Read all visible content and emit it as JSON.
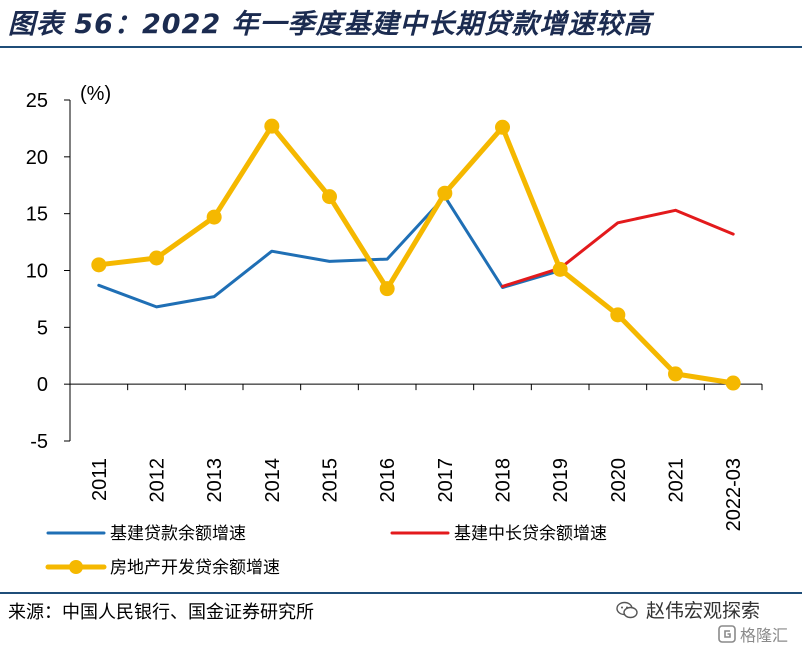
{
  "title": "图表 56：2022 年一季度基建中长期贷款增速较高",
  "source": "来源：中国人民银行、国金证券研究所",
  "brand": {
    "name": "赵伟宏观探索",
    "icon": "wechat-icon"
  },
  "watermark": {
    "text": "格隆汇",
    "icon": "gelonghui-logo-icon"
  },
  "colors": {
    "blue": "#1f6fb5",
    "red": "#e31a1c",
    "yellow": "#f5b800"
  },
  "chart_data": {
    "type": "line",
    "ylabel": "(%)",
    "ylim": [
      -5,
      25
    ],
    "yticks": [
      -5,
      0,
      5,
      10,
      15,
      20,
      25
    ],
    "categories": [
      "2011",
      "2012",
      "2013",
      "2014",
      "2015",
      "2016",
      "2017",
      "2018",
      "2019",
      "2020",
      "2021",
      "2022-03"
    ],
    "grid": false,
    "legend_position": "bottom",
    "series": [
      {
        "name": "基建贷款余额增速",
        "color": "#1f6fb5",
        "markers": false,
        "values": [
          8.7,
          6.8,
          7.7,
          11.7,
          10.8,
          11.0,
          16.5,
          8.5,
          10.0,
          null,
          null,
          null
        ]
      },
      {
        "name": "基建中长贷余额增速",
        "color": "#e31a1c",
        "markers": false,
        "values": [
          null,
          null,
          null,
          null,
          null,
          null,
          null,
          8.6,
          10.2,
          14.2,
          15.3,
          13.2
        ]
      },
      {
        "name": "房地产开发贷余额增速",
        "color": "#f5b800",
        "markers": true,
        "values": [
          10.5,
          11.1,
          14.7,
          22.7,
          16.5,
          8.4,
          16.8,
          22.6,
          10.1,
          6.1,
          0.9,
          0.1
        ]
      }
    ]
  }
}
